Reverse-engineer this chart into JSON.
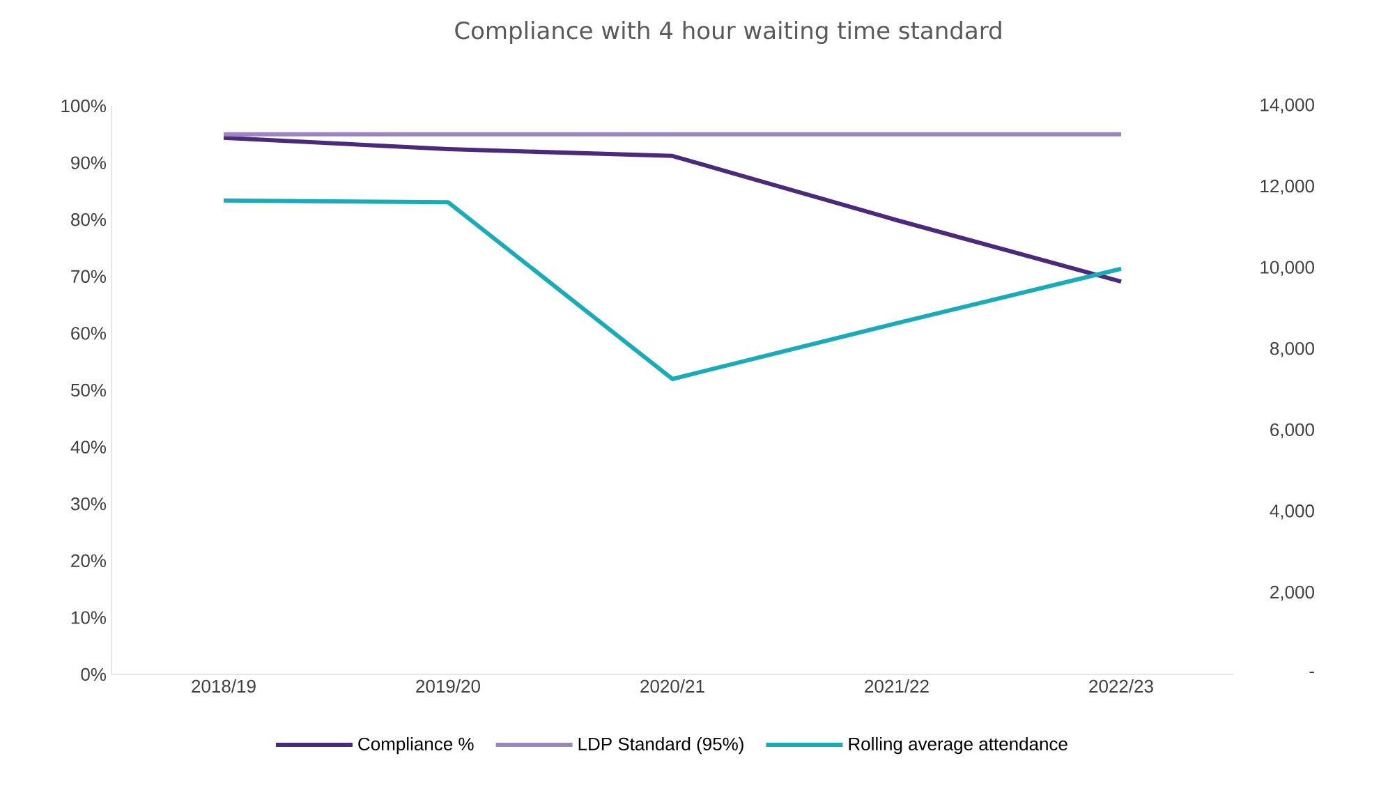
{
  "chart_data": {
    "type": "line",
    "title": "Compliance with 4 hour waiting time standard",
    "categories": [
      "2018/19",
      "2019/20",
      "2020/21",
      "2021/22",
      "2022/23"
    ],
    "series": [
      {
        "name": "Compliance %",
        "color": "#4b2a7b",
        "values": [
          94.4,
          92.4,
          91.2,
          79.9,
          69.1
        ]
      },
      {
        "name": "LDP Standard (95%)",
        "color": "#9b86c0",
        "values": [
          95,
          95,
          95,
          95,
          95
        ]
      },
      {
        "name": "Rolling average attendance",
        "color": "#1aabb8",
        "axis": "y2",
        "values": [
          11670,
          11630,
          7275,
          8650,
          9990
        ]
      }
    ],
    "ylim": [
      0,
      100
    ],
    "yticks": [
      {
        "value": 0,
        "label": "0%"
      },
      {
        "value": 10,
        "label": "10%"
      },
      {
        "value": 20,
        "label": "20%"
      },
      {
        "value": 30,
        "label": "30%"
      },
      {
        "value": 40,
        "label": "40%"
      },
      {
        "value": 50,
        "label": "50%"
      },
      {
        "value": 60,
        "label": "60%"
      },
      {
        "value": 70,
        "label": "70%"
      },
      {
        "value": 80,
        "label": "80%"
      },
      {
        "value": 90,
        "label": "90%"
      },
      {
        "value": 100,
        "label": "100%"
      }
    ],
    "y2lim": [
      0,
      14000
    ],
    "y2ticks": [
      {
        "value": 0,
        "label": "-"
      },
      {
        "value": 2000,
        "label": "2,000"
      },
      {
        "value": 4000,
        "label": "4,000"
      },
      {
        "value": 6000,
        "label": "6,000"
      },
      {
        "value": 8000,
        "label": "8,000"
      },
      {
        "value": 10000,
        "label": "10,000"
      },
      {
        "value": 12000,
        "label": "12,000"
      },
      {
        "value": 14000,
        "label": "14,000"
      }
    ],
    "legend": "bottom"
  }
}
